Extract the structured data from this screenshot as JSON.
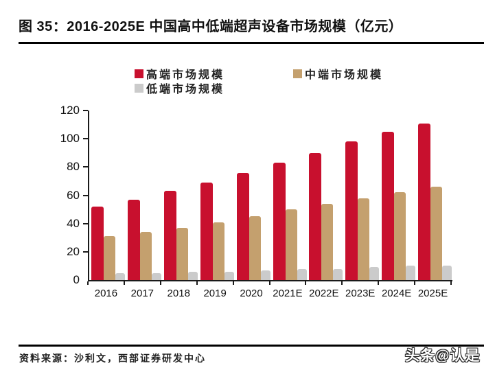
{
  "page": {
    "title": "图 35：2016-2025E 中国高中低端超声设备市场规模（亿元）",
    "source": "资料来源：沙利文，西部证券研发中心",
    "watermark": "头条@认是"
  },
  "chart_data": {
    "type": "bar",
    "title": "2016-2025E 中国高中低端超声设备市场规模（亿元）",
    "unit": "亿元",
    "categories": [
      "2016",
      "2017",
      "2018",
      "2019",
      "2020",
      "2021E",
      "2022E",
      "2023E",
      "2024E",
      "2025E"
    ],
    "series": [
      {
        "name": "高端市场规模",
        "color": "#C8102E",
        "values": [
          52,
          57,
          63,
          69,
          76,
          83,
          90,
          98,
          105,
          111
        ]
      },
      {
        "name": "中端市场规模",
        "color": "#C4A06E",
        "values": [
          31,
          34,
          37,
          41,
          45,
          50,
          54,
          58,
          62,
          66
        ]
      },
      {
        "name": "低端市场规模",
        "color": "#CBCBCB",
        "values": [
          5,
          5,
          6,
          6,
          7,
          8,
          8,
          9,
          10,
          10
        ]
      }
    ],
    "ylim": [
      0,
      120
    ],
    "yticks": [
      0,
      20,
      40,
      60,
      80,
      100,
      120
    ],
    "grid": false,
    "legend_position": "top"
  }
}
